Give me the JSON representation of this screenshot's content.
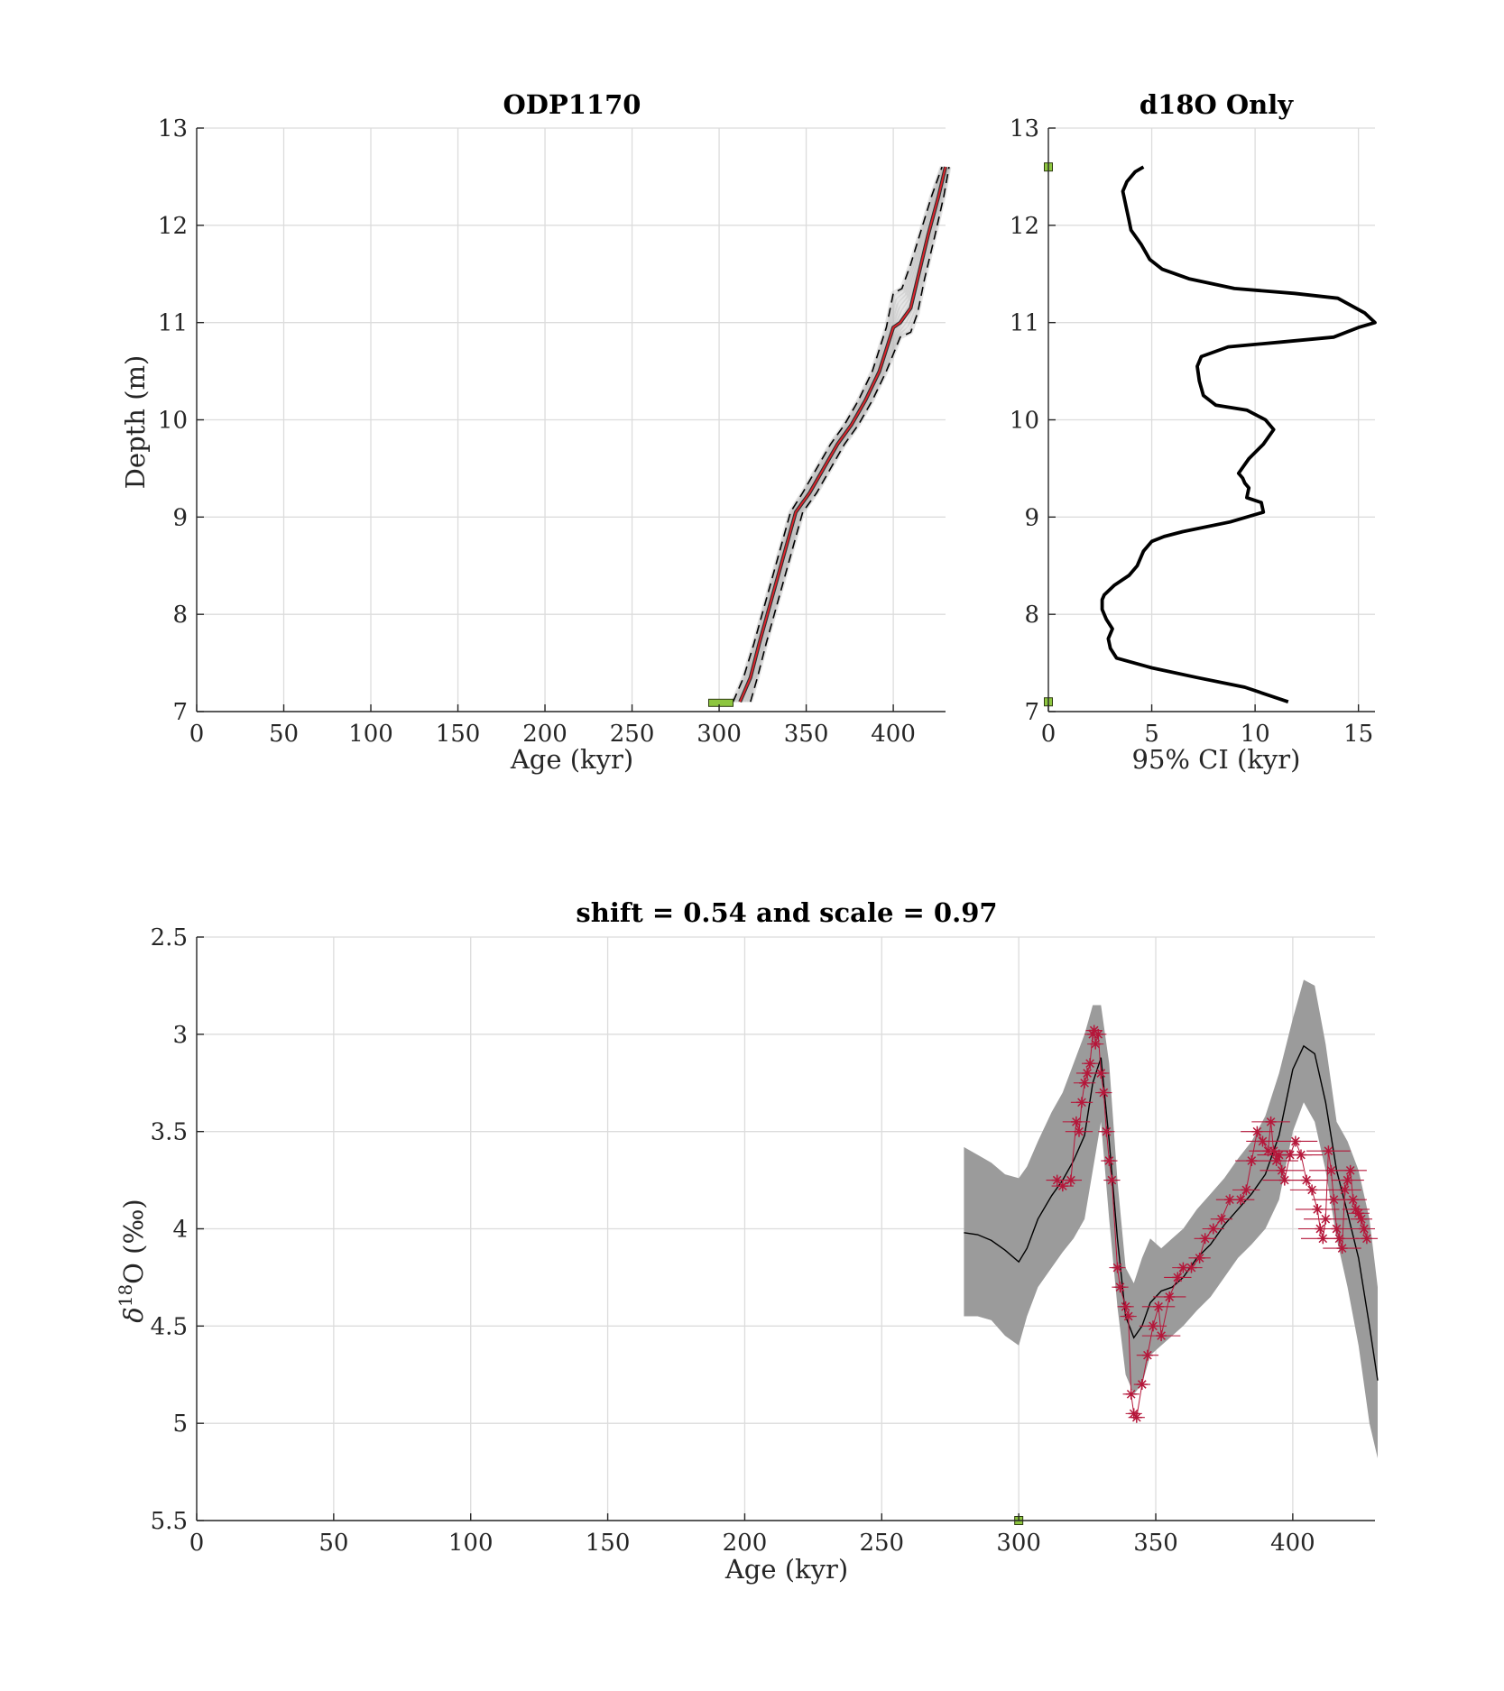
{
  "chart_data": [
    {
      "type": "line",
      "title": "ODP1170",
      "xlabel": "Age (kyr)",
      "ylabel": "Depth (m)",
      "xlim": [
        0,
        430
      ],
      "ylim": [
        7,
        13
      ],
      "xticks": [
        0,
        50,
        100,
        150,
        200,
        250,
        300,
        350,
        400
      ],
      "yticks": [
        7,
        8,
        9,
        10,
        11,
        12,
        13
      ],
      "grid": true,
      "ensemble_color": "#b4b4b4",
      "median_color": "#e0222a",
      "bounds_color": "#000000",
      "tiepoint_color": "#8dc63f",
      "series": [
        {
          "role": "median",
          "x": [
            312,
            318,
            323,
            330,
            337,
            344,
            352,
            360,
            368,
            376,
            384,
            392,
            400,
            404,
            410,
            414,
            420,
            426,
            430
          ],
          "y": [
            7.1,
            7.35,
            7.7,
            8.15,
            8.6,
            9.05,
            9.25,
            9.5,
            9.75,
            9.95,
            10.2,
            10.5,
            10.95,
            11.0,
            11.15,
            11.45,
            11.9,
            12.3,
            12.6
          ]
        },
        {
          "role": "lower-bound",
          "x": [
            308,
            314,
            320,
            327,
            334,
            341,
            348,
            356,
            364,
            372,
            380,
            388,
            396,
            400,
            405,
            410,
            416,
            422,
            428
          ],
          "y": [
            7.1,
            7.35,
            7.7,
            8.15,
            8.6,
            9.05,
            9.25,
            9.5,
            9.75,
            9.95,
            10.2,
            10.5,
            10.95,
            11.3,
            11.35,
            11.6,
            11.95,
            12.3,
            12.6
          ]
        },
        {
          "role": "upper-bound",
          "x": [
            318,
            322,
            327,
            334,
            341,
            348,
            356,
            364,
            372,
            380,
            388,
            396,
            404,
            410,
            414,
            418,
            424,
            429,
            432
          ],
          "y": [
            7.1,
            7.35,
            7.7,
            8.15,
            8.6,
            9.05,
            9.25,
            9.5,
            9.75,
            9.95,
            10.2,
            10.5,
            10.85,
            10.9,
            11.1,
            11.45,
            11.9,
            12.3,
            12.6
          ]
        }
      ],
      "tiepoints": [
        {
          "x": 301,
          "y": 7.09,
          "x_err": 7
        }
      ]
    },
    {
      "type": "line",
      "title": "d18O Only",
      "xlabel": "95% CI (kyr)",
      "ylabel": "",
      "xlim": [
        0,
        15.8
      ],
      "ylim": [
        7,
        13
      ],
      "xticks": [
        0,
        5,
        10,
        15
      ],
      "yticks": [
        7,
        8,
        9,
        10,
        11,
        12,
        13
      ],
      "grid": true,
      "line_color": "#000000",
      "tiepoint_color": "#8dc63f",
      "series": [
        {
          "x": [
            11.6,
            9.5,
            7.2,
            5.0,
            3.3,
            3.0,
            2.9,
            3.1,
            2.8,
            2.6,
            2.6,
            2.7,
            3.2,
            3.9,
            4.3,
            4.5,
            4.6,
            5.0,
            5.6,
            6.5,
            8.8,
            10.4,
            10.3,
            9.6,
            9.7,
            9.5,
            9.4,
            9.2,
            9.7,
            10.4,
            10.9,
            10.5,
            9.6,
            8.1,
            7.5,
            7.3,
            7.2,
            7.4,
            8.7,
            11.3,
            13.8,
            15.0,
            15.8,
            15.3,
            14.0,
            11.9,
            9.0,
            6.8,
            5.5,
            4.9,
            4.5,
            4.0,
            3.9,
            3.8,
            3.7,
            3.6,
            3.8,
            4.2,
            4.6
          ],
          "y": [
            7.1,
            7.25,
            7.35,
            7.45,
            7.55,
            7.65,
            7.75,
            7.85,
            7.95,
            8.05,
            8.15,
            8.2,
            8.3,
            8.4,
            8.5,
            8.6,
            8.65,
            8.75,
            8.8,
            8.85,
            8.95,
            9.05,
            9.15,
            9.2,
            9.3,
            9.35,
            9.4,
            9.45,
            9.6,
            9.75,
            9.9,
            10.0,
            10.1,
            10.15,
            10.25,
            10.4,
            10.55,
            10.65,
            10.75,
            10.8,
            10.85,
            10.95,
            11.0,
            11.1,
            11.25,
            11.3,
            11.35,
            11.45,
            11.55,
            11.65,
            11.8,
            11.95,
            12.05,
            12.15,
            12.25,
            12.35,
            12.45,
            12.55,
            12.6
          ]
        }
      ],
      "tiepoints": [
        {
          "x": 0,
          "y": 7.1
        },
        {
          "x": 0,
          "y": 12.6
        }
      ]
    },
    {
      "type": "line",
      "title": "shift = 0.54 and scale = 0.97",
      "xlabel": "Age (kyr)",
      "ylabel": "δ18O (‰)",
      "ylabel_base": "δ",
      "ylabel_sup": "18",
      "ylabel_rest": "O (‰)",
      "xlim": [
        0,
        430
      ],
      "ylim": [
        2.5,
        5.5
      ],
      "y_reversed": true,
      "xticks": [
        0,
        50,
        100,
        150,
        200,
        250,
        300,
        350,
        400
      ],
      "yticks": [
        2.5,
        3,
        3.5,
        4,
        4.5,
        5,
        5.5
      ],
      "grid": true,
      "band_color": "#9b9b9b",
      "stack_color": "#000000",
      "data_color": "#b5173a",
      "tiepoint_color": "#8dc63f",
      "stack": {
        "x": [
          280,
          285,
          290,
          295,
          300,
          303,
          307,
          312,
          316,
          320,
          324,
          327,
          330,
          333,
          336,
          339,
          342,
          345,
          348,
          352,
          356,
          360,
          365,
          370,
          375,
          380,
          385,
          390,
          395,
          400,
          404,
          408,
          412,
          416,
          420,
          424,
          428,
          431
        ],
        "y": [
          4.02,
          4.03,
          4.06,
          4.11,
          4.17,
          4.1,
          3.95,
          3.83,
          3.75,
          3.65,
          3.52,
          3.25,
          3.12,
          3.55,
          4.05,
          4.45,
          4.56,
          4.5,
          4.38,
          4.32,
          4.3,
          4.25,
          4.15,
          4.08,
          3.98,
          3.9,
          3.82,
          3.72,
          3.52,
          3.18,
          3.06,
          3.1,
          3.35,
          3.7,
          3.92,
          4.15,
          4.5,
          4.78
        ]
      },
      "band": {
        "x": [
          280,
          285,
          290,
          295,
          300,
          303,
          307,
          312,
          316,
          320,
          324,
          327,
          330,
          333,
          336,
          339,
          342,
          345,
          348,
          352,
          356,
          360,
          365,
          370,
          375,
          380,
          385,
          390,
          395,
          400,
          404,
          408,
          412,
          416,
          420,
          424,
          428,
          431
        ],
        "lower": [
          3.58,
          3.62,
          3.66,
          3.72,
          3.74,
          3.68,
          3.55,
          3.4,
          3.3,
          3.15,
          3.0,
          2.85,
          2.85,
          3.15,
          3.75,
          4.2,
          4.28,
          4.15,
          4.05,
          4.1,
          4.05,
          4.0,
          3.9,
          3.82,
          3.74,
          3.64,
          3.55,
          3.42,
          3.2,
          2.92,
          2.72,
          2.75,
          3.05,
          3.45,
          3.55,
          3.7,
          3.95,
          4.3
        ],
        "upper": [
          4.45,
          4.45,
          4.47,
          4.55,
          4.6,
          4.45,
          4.3,
          4.2,
          4.12,
          4.05,
          3.95,
          3.7,
          3.45,
          3.95,
          4.4,
          4.75,
          4.85,
          4.8,
          4.65,
          4.6,
          4.55,
          4.5,
          4.42,
          4.35,
          4.25,
          4.15,
          4.08,
          4.0,
          3.85,
          3.5,
          3.35,
          3.45,
          3.7,
          4.05,
          4.3,
          4.6,
          5.0,
          5.18
        ]
      },
      "data_points": {
        "x": [
          314,
          316,
          319,
          321,
          322,
          323,
          324,
          325,
          326,
          327,
          327.5,
          328,
          329,
          330,
          331,
          332,
          333,
          334,
          336,
          337,
          339,
          340,
          341,
          342,
          343,
          345,
          347,
          349,
          351,
          352,
          355,
          358,
          360,
          363,
          366,
          368,
          371,
          374,
          377,
          381,
          383,
          385,
          387,
          389,
          391,
          392,
          393,
          394,
          395,
          396,
          397,
          399,
          401,
          403,
          405,
          407,
          409,
          410,
          411,
          412,
          413,
          414,
          415,
          416,
          417,
          418,
          419,
          420,
          421,
          422,
          423,
          424,
          425,
          426,
          427
        ],
        "y": [
          3.75,
          3.78,
          3.75,
          3.45,
          3.5,
          3.35,
          3.25,
          3.2,
          3.15,
          3.0,
          2.98,
          3.05,
          3.0,
          3.2,
          3.3,
          3.5,
          3.65,
          3.75,
          4.2,
          4.3,
          4.4,
          4.45,
          4.85,
          4.95,
          4.97,
          4.8,
          4.65,
          4.5,
          4.4,
          4.55,
          4.35,
          4.25,
          4.2,
          4.2,
          4.15,
          4.05,
          4.0,
          3.95,
          3.85,
          3.85,
          3.8,
          3.65,
          3.5,
          3.55,
          3.6,
          3.45,
          3.6,
          3.65,
          3.62,
          3.7,
          3.75,
          3.62,
          3.55,
          3.62,
          3.75,
          3.8,
          3.9,
          4.0,
          4.05,
          3.95,
          3.6,
          3.7,
          3.85,
          4.0,
          4.05,
          4.1,
          3.8,
          3.75,
          3.7,
          3.85,
          3.9,
          3.92,
          3.95,
          4.0,
          4.05
        ],
        "x_err": [
          4,
          4,
          4,
          5,
          5,
          4,
          4,
          4,
          3,
          3,
          3,
          3,
          3,
          3,
          3,
          3,
          3,
          3,
          3,
          3,
          3,
          3,
          3,
          3,
          3,
          3,
          4,
          5,
          6,
          7,
          6,
          5,
          4,
          4,
          4,
          4,
          4,
          4,
          5,
          5,
          5,
          6,
          6,
          6,
          7,
          7,
          7,
          8,
          8,
          8,
          8,
          8,
          8,
          8,
          8,
          8,
          8,
          8,
          8,
          8,
          8,
          8,
          8,
          8,
          7,
          7,
          6,
          6,
          6,
          5,
          5,
          4,
          4,
          4,
          4
        ]
      },
      "tiepoints": [
        {
          "x": 300,
          "y": 5.5
        }
      ]
    }
  ]
}
